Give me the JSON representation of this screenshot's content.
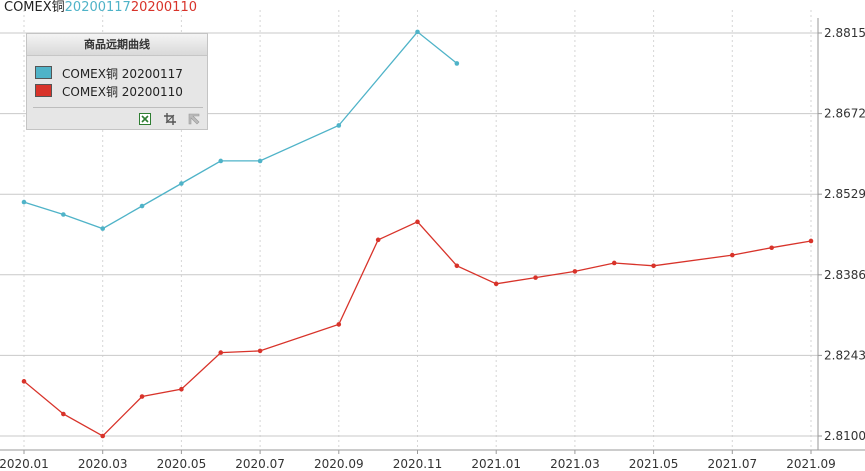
{
  "header": {
    "prefix": "COMEX铜",
    "series1_tag": "20200117",
    "series2_tag": "20200110"
  },
  "legend": {
    "title": "商品远期曲线",
    "items": [
      {
        "label": "COMEX铜 20200117",
        "color": "#4fb3c8"
      },
      {
        "label": "COMEX铜 20200110",
        "color": "#d8332a"
      }
    ],
    "tools": [
      "excel-export-icon",
      "crop-icon",
      "cursor-icon"
    ]
  },
  "chart_data": {
    "type": "line",
    "x_ticks": [
      "2020.01",
      "2020.03",
      "2020.05",
      "2020.07",
      "2020.09",
      "2020.11",
      "2021.01",
      "2021.03",
      "2021.05",
      "2021.07",
      "2021.09"
    ],
    "y_ticks": [
      "2.8815",
      "2.8672",
      "2.8529",
      "2.8386",
      "2.8243",
      "2.8100"
    ],
    "ylim": [
      2.81,
      2.8815
    ],
    "y_axis_position": "right",
    "grid": true,
    "series": [
      {
        "name": "COMEX铜 20200117",
        "color": "#4fb3c8",
        "points": [
          {
            "x": "2020.01",
            "y": 2.8515
          },
          {
            "x": "2020.02",
            "y": 2.8493
          },
          {
            "x": "2020.03",
            "y": 2.8468
          },
          {
            "x": "2020.04",
            "y": 2.8508
          },
          {
            "x": "2020.05",
            "y": 2.8548
          },
          {
            "x": "2020.06",
            "y": 2.8588
          },
          {
            "x": "2020.07",
            "y": 2.8588
          },
          {
            "x": "2020.09",
            "y": 2.8651
          },
          {
            "x": "2020.11",
            "y": 2.8817
          },
          {
            "x": "2020.12",
            "y": 2.8761
          }
        ]
      },
      {
        "name": "COMEX铜 20200110",
        "color": "#d8332a",
        "points": [
          {
            "x": "2020.01",
            "y": 2.8197
          },
          {
            "x": "2020.02",
            "y": 2.8139
          },
          {
            "x": "2020.03",
            "y": 2.81
          },
          {
            "x": "2020.04",
            "y": 2.817
          },
          {
            "x": "2020.05",
            "y": 2.8183
          },
          {
            "x": "2020.06",
            "y": 2.8248
          },
          {
            "x": "2020.07",
            "y": 2.8251
          },
          {
            "x": "2020.09",
            "y": 2.8298
          },
          {
            "x": "2020.10",
            "y": 2.8448
          },
          {
            "x": "2020.11",
            "y": 2.848
          },
          {
            "x": "2020.12",
            "y": 2.8402
          },
          {
            "x": "2021.01",
            "y": 2.837
          },
          {
            "x": "2021.02",
            "y": 2.8381
          },
          {
            "x": "2021.03",
            "y": 2.8392
          },
          {
            "x": "2021.04",
            "y": 2.8407
          },
          {
            "x": "2021.05",
            "y": 2.8402
          },
          {
            "x": "2021.07",
            "y": 2.8421
          },
          {
            "x": "2021.08",
            "y": 2.8434
          },
          {
            "x": "2021.09",
            "y": 2.8446
          }
        ]
      }
    ]
  }
}
